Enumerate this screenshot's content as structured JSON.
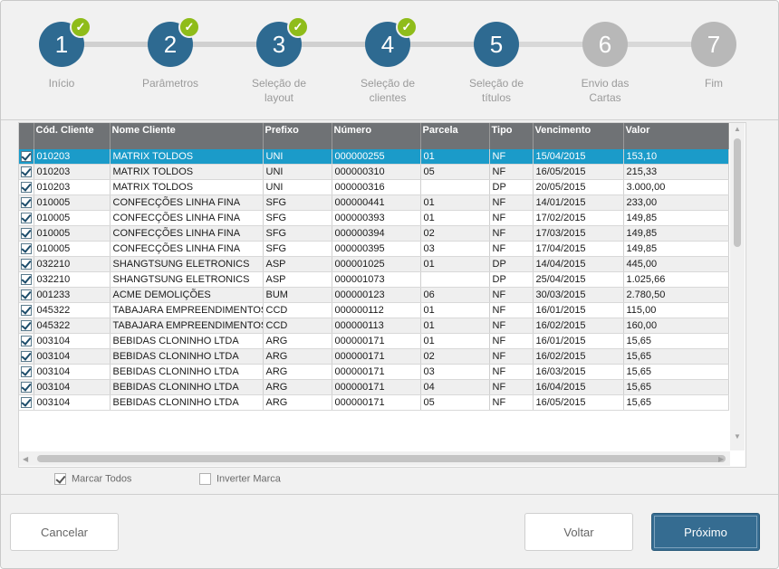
{
  "stepper": {
    "steps": [
      {
        "number": "1",
        "label": "Início",
        "done": true
      },
      {
        "number": "2",
        "label": "Parâmetros",
        "done": true
      },
      {
        "number": "3",
        "label": "Seleção de\nlayout",
        "done": true
      },
      {
        "number": "4",
        "label": "Seleção de\nclientes",
        "done": true
      },
      {
        "number": "5",
        "label": "Seleção de\ntítulos",
        "done": false,
        "current": true
      },
      {
        "number": "6",
        "label": "Envio das\nCartas",
        "done": false
      },
      {
        "number": "7",
        "label": "Fim",
        "done": false
      }
    ],
    "check_glyph": "✓"
  },
  "grid": {
    "columns": [
      "Cód. Cliente",
      "Nome Cliente",
      "Prefixo",
      "Número",
      "Parcela",
      "Tipo",
      "Vencimento",
      "Valor"
    ],
    "rows": [
      [
        "010203",
        "MATRIX TOLDOS",
        "UNI",
        "000000255",
        "01",
        "NF",
        "15/04/2015",
        "153,10"
      ],
      [
        "010203",
        "MATRIX TOLDOS",
        "UNI",
        "000000310",
        "05",
        "NF",
        "16/05/2015",
        "215,33"
      ],
      [
        "010203",
        "MATRIX TOLDOS",
        "UNI",
        "000000316",
        "",
        "DP",
        "20/05/2015",
        "3.000,00"
      ],
      [
        "010005",
        "CONFECÇÕES LINHA FINA",
        "SFG",
        "000000441",
        "01",
        "NF",
        "14/01/2015",
        "233,00"
      ],
      [
        "010005",
        "CONFECÇÕES LINHA FINA",
        "SFG",
        "000000393",
        "01",
        "NF",
        "17/02/2015",
        "149,85"
      ],
      [
        "010005",
        "CONFECÇÕES LINHA FINA",
        "SFG",
        "000000394",
        "02",
        "NF",
        "17/03/2015",
        "149,85"
      ],
      [
        "010005",
        "CONFECÇÕES LINHA FINA",
        "SFG",
        "000000395",
        "03",
        "NF",
        "17/04/2015",
        "149,85"
      ],
      [
        "032210",
        "SHANGTSUNG ELETRONICS",
        "ASP",
        "000001025",
        "01",
        "DP",
        "14/04/2015",
        "445,00"
      ],
      [
        "032210",
        "SHANGTSUNG ELETRONICS",
        "ASP",
        "000001073",
        "",
        "DP",
        "25/04/2015",
        "1.025,66"
      ],
      [
        "001233",
        "ACME DEMOLIÇÕES",
        "BUM",
        "000000123",
        "06",
        "NF",
        "30/03/2015",
        "2.780,50"
      ],
      [
        "045322",
        "TABAJARA EMPREENDIMENTOS",
        "CCD",
        "000000112",
        "01",
        "NF",
        "16/01/2015",
        "115,00"
      ],
      [
        "045322",
        "TABAJARA EMPREENDIMENTOS",
        "CCD",
        "000000113",
        "01",
        "NF",
        "16/02/2015",
        "160,00"
      ],
      [
        "003104",
        "BEBIDAS CLONINHO LTDA",
        "ARG",
        "000000171",
        "01",
        "NF",
        "16/01/2015",
        "15,65"
      ],
      [
        "003104",
        "BEBIDAS CLONINHO LTDA",
        "ARG",
        "000000171",
        "02",
        "NF",
        "16/02/2015",
        "15,65"
      ],
      [
        "003104",
        "BEBIDAS CLONINHO LTDA",
        "ARG",
        "000000171",
        "03",
        "NF",
        "16/03/2015",
        "15,65"
      ],
      [
        "003104",
        "BEBIDAS CLONINHO LTDA",
        "ARG",
        "000000171",
        "04",
        "NF",
        "16/04/2015",
        "15,65"
      ],
      [
        "003104",
        "BEBIDAS CLONINHO LTDA",
        "ARG",
        "000000171",
        "05",
        "NF",
        "16/05/2015",
        "15,65"
      ]
    ],
    "selected_row": 0,
    "scroll_up": "▲",
    "scroll_down": "▼",
    "scroll_left": "◀",
    "scroll_right": "▶"
  },
  "options": {
    "mark_all_label": "Marcar Todos",
    "mark_all_checked": true,
    "invert_label": "Inverter Marca",
    "invert_checked": false
  },
  "footer": {
    "cancel_label": "Cancelar",
    "back_label": "Voltar",
    "next_label": "Próximo"
  },
  "colors": {
    "active_step": "#2e6a91",
    "inactive_step": "#b8b8b8",
    "done_check": "#8fbc1a",
    "selected_row": "#1b9bc9",
    "header_bg": "#6f7275",
    "primary_button": "#356c91"
  }
}
